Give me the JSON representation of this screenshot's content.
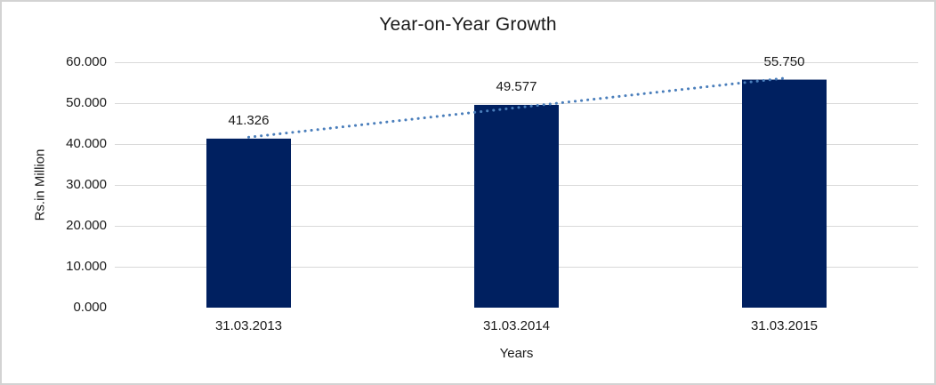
{
  "window": {
    "background_color": "#ffffff",
    "border_color": "#d3d3d3"
  },
  "chart_data": {
    "type": "bar",
    "title": "Year-on-Year Growth",
    "xlabel": "Years",
    "ylabel": "Rs.in Million",
    "categories": [
      "31.03.2013",
      "31.03.2014",
      "31.03.2015"
    ],
    "values": [
      41.326,
      49.577,
      55.75
    ],
    "data_labels": [
      "41.326",
      "49.577",
      "55.750"
    ],
    "ylim": [
      0,
      60
    ],
    "y_ticks": [
      {
        "value": 0,
        "label": "0.000"
      },
      {
        "value": 10,
        "label": "10.000"
      },
      {
        "value": 20,
        "label": "20.000"
      },
      {
        "value": 30,
        "label": "30.000"
      },
      {
        "value": 40,
        "label": "40.000"
      },
      {
        "value": 50,
        "label": "50.000"
      },
      {
        "value": 60,
        "label": "60.000"
      }
    ],
    "grid": true,
    "legend": false,
    "bar_color": "#002060",
    "gridline_color": "#d9d9d9",
    "axis_line_color": "#d0d0d0",
    "trendline": {
      "type": "linear",
      "style": "dotted",
      "color": "#4a7ebb"
    }
  }
}
